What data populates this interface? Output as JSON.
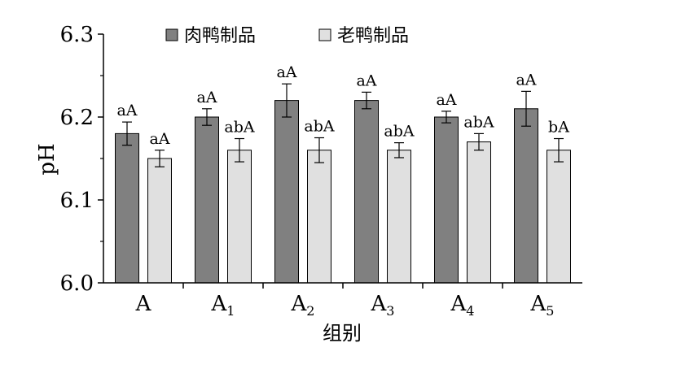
{
  "chart_data": {
    "type": "bar",
    "xlabel": "组别",
    "ylabel": "pH",
    "ylim": [
      6.0,
      6.3
    ],
    "yticks": [
      "6.0",
      "6.1",
      "6.2",
      "6.3"
    ],
    "ytick_values": [
      6.0,
      6.1,
      6.2,
      6.3
    ],
    "categories": [
      {
        "main": "A",
        "sub": ""
      },
      {
        "main": "A",
        "sub": "1"
      },
      {
        "main": "A",
        "sub": "2"
      },
      {
        "main": "A",
        "sub": "3"
      },
      {
        "main": "A",
        "sub": "4"
      },
      {
        "main": "A",
        "sub": "5"
      }
    ],
    "series": [
      {
        "name": "肉鸭制品",
        "color": "#808080",
        "values": [
          6.18,
          6.2,
          6.22,
          6.22,
          6.2,
          6.21
        ],
        "errors": [
          0.014,
          0.01,
          0.02,
          0.01,
          0.007,
          0.021
        ],
        "labels": [
          "aA",
          "aA",
          "aA",
          "aA",
          "aA",
          "aA"
        ]
      },
      {
        "name": "老鸭制品",
        "color": "#e0e0e0",
        "values": [
          6.15,
          6.16,
          6.16,
          6.16,
          6.17,
          6.16
        ],
        "errors": [
          0.01,
          0.014,
          0.015,
          0.009,
          0.01,
          0.014
        ],
        "labels": [
          "aA",
          "abA",
          "abA",
          "abA",
          "abA",
          "bA"
        ]
      }
    ],
    "legend": "top-center",
    "grid": false
  }
}
